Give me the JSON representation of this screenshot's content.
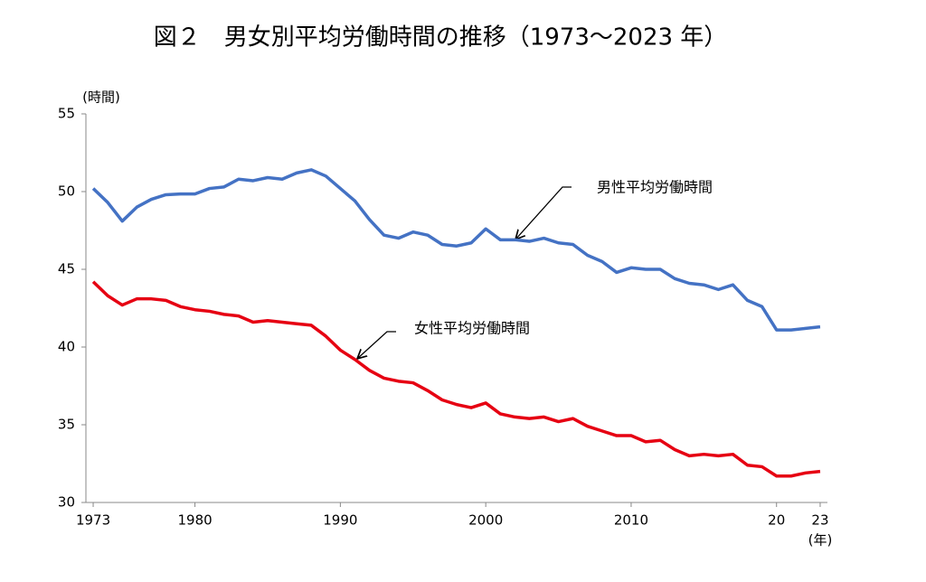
{
  "chart_data": {
    "type": "line",
    "title": "図２　男女別平均労働時間の推移（1973～2023 年）",
    "y_label": "(時間)",
    "x_label": "(年)",
    "x": [
      1973,
      1974,
      1975,
      1976,
      1977,
      1978,
      1979,
      1980,
      1981,
      1982,
      1983,
      1984,
      1985,
      1986,
      1987,
      1988,
      1989,
      1990,
      1991,
      1992,
      1993,
      1994,
      1995,
      1996,
      1997,
      1998,
      1999,
      2000,
      2001,
      2002,
      2003,
      2004,
      2005,
      2006,
      2007,
      2008,
      2009,
      2010,
      2011,
      2012,
      2013,
      2014,
      2015,
      2016,
      2017,
      2018,
      2019,
      2020,
      2021,
      2022,
      2023
    ],
    "series": [
      {
        "name": "男性平均労働時間",
        "color": "#4472c4",
        "values": [
          50.2,
          49.3,
          48.1,
          49.0,
          49.5,
          49.8,
          49.85,
          49.85,
          50.2,
          50.3,
          50.8,
          50.7,
          50.9,
          50.8,
          51.2,
          51.4,
          51.0,
          50.2,
          49.4,
          48.2,
          47.2,
          47.0,
          47.4,
          47.2,
          46.6,
          46.5,
          46.7,
          47.6,
          46.9,
          46.9,
          46.8,
          47.0,
          46.7,
          46.6,
          45.9,
          45.5,
          44.8,
          45.1,
          45.0,
          45.0,
          44.4,
          44.1,
          44.0,
          43.7,
          44.0,
          43.0,
          42.6,
          41.1,
          41.1,
          41.2,
          41.3
        ]
      },
      {
        "name": "女性平均労働時間",
        "color": "#e60012",
        "values": [
          44.2,
          43.3,
          42.7,
          43.1,
          43.1,
          43.0,
          42.6,
          42.4,
          42.3,
          42.1,
          42.0,
          41.6,
          41.7,
          41.6,
          41.5,
          41.4,
          40.7,
          39.8,
          39.2,
          38.5,
          38.0,
          37.8,
          37.7,
          37.2,
          36.6,
          36.3,
          36.1,
          36.4,
          35.7,
          35.5,
          35.4,
          35.5,
          35.2,
          35.4,
          34.9,
          34.6,
          34.3,
          34.3,
          33.9,
          34.0,
          33.4,
          33.0,
          33.1,
          33.0,
          33.1,
          32.4,
          32.3,
          31.7,
          31.7,
          31.9,
          32.0
        ]
      }
    ],
    "xlim": [
      1972.5,
      2023.5
    ],
    "xticks": [
      1973,
      1980,
      1990,
      2000,
      2010,
      {
        "value": 2020,
        "label": "20"
      },
      {
        "value": 2023,
        "label": "23"
      }
    ],
    "ylim": [
      30,
      55
    ],
    "yticks": [
      30,
      35,
      40,
      45,
      50,
      55
    ],
    "grid": false
  }
}
